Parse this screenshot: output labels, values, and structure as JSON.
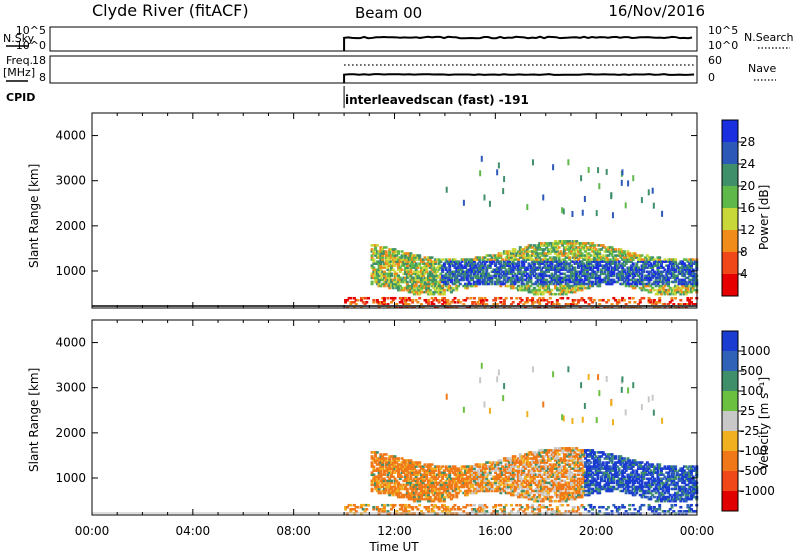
{
  "header": {
    "title": "Clyde River (fitACF)",
    "beam": "Beam 00",
    "date": "16/Nov/2016"
  },
  "chart_data": [
    {
      "type": "line",
      "panel": "noise",
      "labels_left": [
        "N.Sky",
        "10^5",
        "10^0"
      ],
      "labels_right": [
        "10^5",
        "10^0",
        "N.Search"
      ],
      "series": [
        {
          "name": "N.Sky",
          "style": "solid"
        },
        {
          "name": "N.Search",
          "style": "dotted"
        }
      ],
      "data_start_hour": 10,
      "data_end_hour": 24
    },
    {
      "type": "line",
      "panel": "frequency",
      "labels_left": [
        "Freq.",
        "[MHz]",
        "18",
        "8"
      ],
      "labels_right": [
        "60",
        "0",
        "Nave"
      ],
      "series": [
        {
          "name": "Freq.",
          "style": "solid"
        },
        {
          "name": "Nave",
          "style": "dotted"
        }
      ]
    },
    {
      "type": "table",
      "panel": "cpid",
      "label": "CPID",
      "value": "interleavedscan (fast) -191",
      "start_hour": 10
    },
    {
      "type": "heatmap",
      "panel": "power",
      "ylabel": "Slant Range [km]",
      "yticks": [
        "1000",
        "2000",
        "3000",
        "4000"
      ],
      "ylim": [
        180,
        4500
      ],
      "xlim": [
        0,
        24
      ],
      "colorbar": {
        "label": "Power [dB]",
        "ticks": [
          "4",
          "8",
          "12",
          "16",
          "20",
          "24",
          "28"
        ],
        "colors": [
          "#1a2fe0",
          "#2c58b8",
          "#3e8f6a",
          "#5fb84a",
          "#c8d838",
          "#f08c1a",
          "#f04818",
          "#e60000"
        ]
      }
    },
    {
      "type": "heatmap",
      "panel": "velocity",
      "ylabel": "Slant Range [km]",
      "yticks": [
        "1000",
        "2000",
        "3000",
        "4000"
      ],
      "ylim": [
        180,
        4500
      ],
      "xlim": [
        0,
        24
      ],
      "xticks": [
        "00:00",
        "04:00",
        "08:00",
        "12:00",
        "16:00",
        "20:00",
        "00:00"
      ],
      "xlabel": "Time UT",
      "colorbar": {
        "label": "Velocity [m s⁻¹]",
        "ticks": [
          "1000",
          "500",
          "100",
          "25",
          "-25",
          "-100",
          "-500",
          "-1000"
        ],
        "colors": [
          "#1a3cd0",
          "#3062b8",
          "#3e8f6a",
          "#6cc040",
          "#c8c8c8",
          "#f0b020",
          "#f07818",
          "#f04818",
          "#e00000"
        ]
      }
    }
  ]
}
